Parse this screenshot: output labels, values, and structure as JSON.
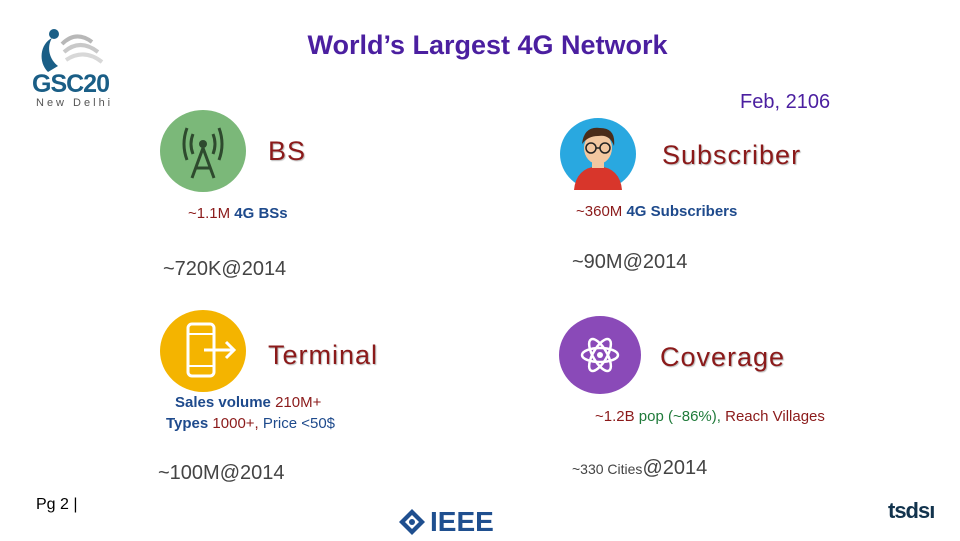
{
  "title": "World’s Largest 4G Network",
  "date": "Feb, 2106",
  "logo": {
    "main": "GSC20",
    "sub": "New Delhi"
  },
  "bs": {
    "heading": "BS",
    "count": "~1.1M",
    "count_label": "4G BSs",
    "history": "~720K@2014"
  },
  "subscriber": {
    "heading": "Subscriber",
    "count": "~360M",
    "count_label": "4G Subscribers",
    "history": "~90M@2014"
  },
  "terminal": {
    "heading": "Terminal",
    "sales_label": "Sales volume",
    "sales_value": "210M+",
    "types_label": "Types",
    "types_value": "1000+,",
    "price": "Price <50$",
    "history": "~100M@2014"
  },
  "coverage": {
    "heading": "Coverage",
    "pop_value": "~1.2B",
    "pop_text": "pop (~86%),",
    "villages": "Reach Villages",
    "cities": "~330 Cities",
    "year": "@2014"
  },
  "footer": {
    "page": "Pg 2 |",
    "ieee": "IEEE",
    "tsdsi": "tsdsı"
  },
  "icons": [
    "tower-icon",
    "person-icon",
    "phone-icon",
    "atom-icon",
    "peacock-icon",
    "ieee-diamond-icon"
  ]
}
